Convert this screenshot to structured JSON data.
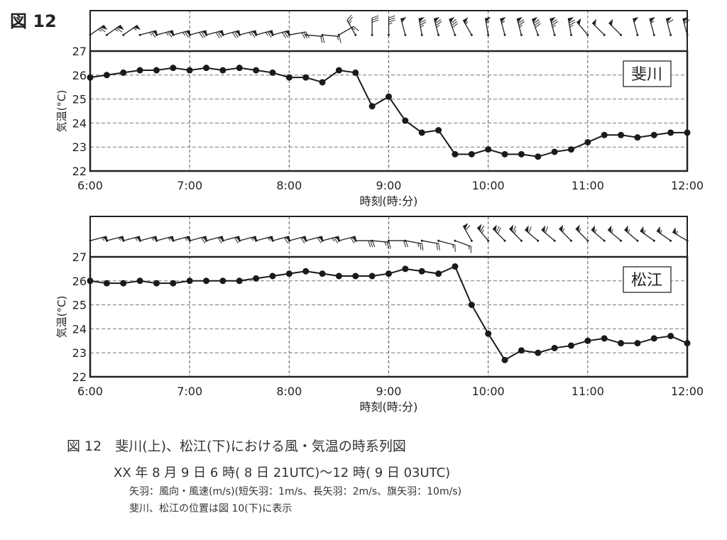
{
  "figure_label": "図 12",
  "caption": {
    "title": "図 12　斐川(上)、松江(下)における風・気温の時系列図",
    "period": "XX 年 8 月 9 日 6 時( 8 日 21UTC)〜12 時( 9 日 03UTC)",
    "note1": "矢羽：風向・風速(m/s)(短矢羽：1m/s、長矢羽：2m/s、旗矢羽：10m/s)",
    "note2": "斐川、松江の位置は図 10(下)に表示"
  },
  "chart_data": [
    {
      "type": "line",
      "station": "斐川",
      "xlabel": "時刻(時:分)",
      "ylabel": "気温(°C)",
      "ylim": [
        22,
        27
      ],
      "yticks": [
        "22",
        "23",
        "24",
        "25",
        "26",
        "27"
      ],
      "xticks": [
        "6:00",
        "7:00",
        "8:00",
        "9:00",
        "10:00",
        "11:00",
        "12:00"
      ],
      "x_range_minutes": [
        0,
        360
      ],
      "interval_minutes": 10,
      "grid": true,
      "values": [
        25.9,
        26.0,
        26.1,
        26.2,
        26.2,
        26.3,
        26.2,
        26.3,
        26.2,
        26.3,
        26.2,
        26.1,
        25.9,
        25.9,
        25.7,
        26.2,
        26.1,
        24.7,
        25.1,
        24.1,
        23.6,
        23.7,
        22.7,
        22.7,
        22.9,
        22.7,
        22.7,
        22.6,
        22.8,
        22.9,
        23.2,
        23.5,
        23.5,
        23.4,
        23.5,
        23.6,
        23.6
      ],
      "wind_dir_deg": [
        55,
        55,
        55,
        75,
        75,
        75,
        75,
        75,
        75,
        75,
        75,
        75,
        80,
        95,
        95,
        60,
        330,
        0,
        0,
        345,
        350,
        345,
        340,
        330,
        350,
        345,
        345,
        340,
        345,
        350,
        320,
        315,
        315,
        345,
        345,
        345,
        345
      ],
      "wind_speed_ms": [
        13,
        13,
        11,
        13,
        13,
        13,
        14,
        14,
        14,
        13,
        13,
        14,
        6,
        4,
        3,
        3,
        5,
        6,
        7,
        10,
        15,
        15,
        16,
        11,
        11,
        11,
        15,
        16,
        15,
        15,
        10,
        10,
        10,
        10,
        11,
        12,
        12
      ]
    },
    {
      "type": "line",
      "station": "松江",
      "xlabel": "時刻(時:分)",
      "ylabel": "気温(°C)",
      "ylim": [
        22,
        27
      ],
      "yticks": [
        "22",
        "23",
        "24",
        "25",
        "26",
        "27"
      ],
      "xticks": [
        "6:00",
        "7:00",
        "8:00",
        "9:00",
        "10:00",
        "11:00",
        "12:00"
      ],
      "x_range_minutes": [
        0,
        360
      ],
      "interval_minutes": 10,
      "grid": true,
      "values": [
        26.0,
        25.9,
        25.9,
        26.0,
        25.9,
        25.9,
        26.0,
        26.0,
        26.0,
        26.0,
        26.1,
        26.2,
        26.3,
        26.4,
        26.3,
        26.2,
        26.2,
        26.2,
        26.3,
        26.5,
        26.4,
        26.3,
        26.6,
        25.0,
        23.8,
        22.7,
        23.1,
        23.0,
        23.2,
        23.3,
        23.5,
        23.6,
        23.4,
        23.4,
        23.6,
        23.7,
        23.4
      ],
      "wind_dir_deg": [
        75,
        75,
        75,
        75,
        75,
        75,
        75,
        75,
        75,
        75,
        75,
        75,
        75,
        75,
        75,
        75,
        90,
        95,
        90,
        100,
        100,
        105,
        110,
        330,
        320,
        315,
        315,
        310,
        310,
        315,
        315,
        310,
        310,
        310,
        305,
        305,
        300
      ],
      "wind_speed_ms": [
        11,
        11,
        11,
        11,
        11,
        11,
        12,
        12,
        12,
        11,
        11,
        12,
        12,
        12,
        13,
        12,
        6,
        5,
        4,
        5,
        4,
        3,
        3,
        12,
        13,
        14,
        13,
        12,
        12,
        11,
        11,
        11,
        11,
        11,
        11,
        11,
        11
      ]
    }
  ]
}
